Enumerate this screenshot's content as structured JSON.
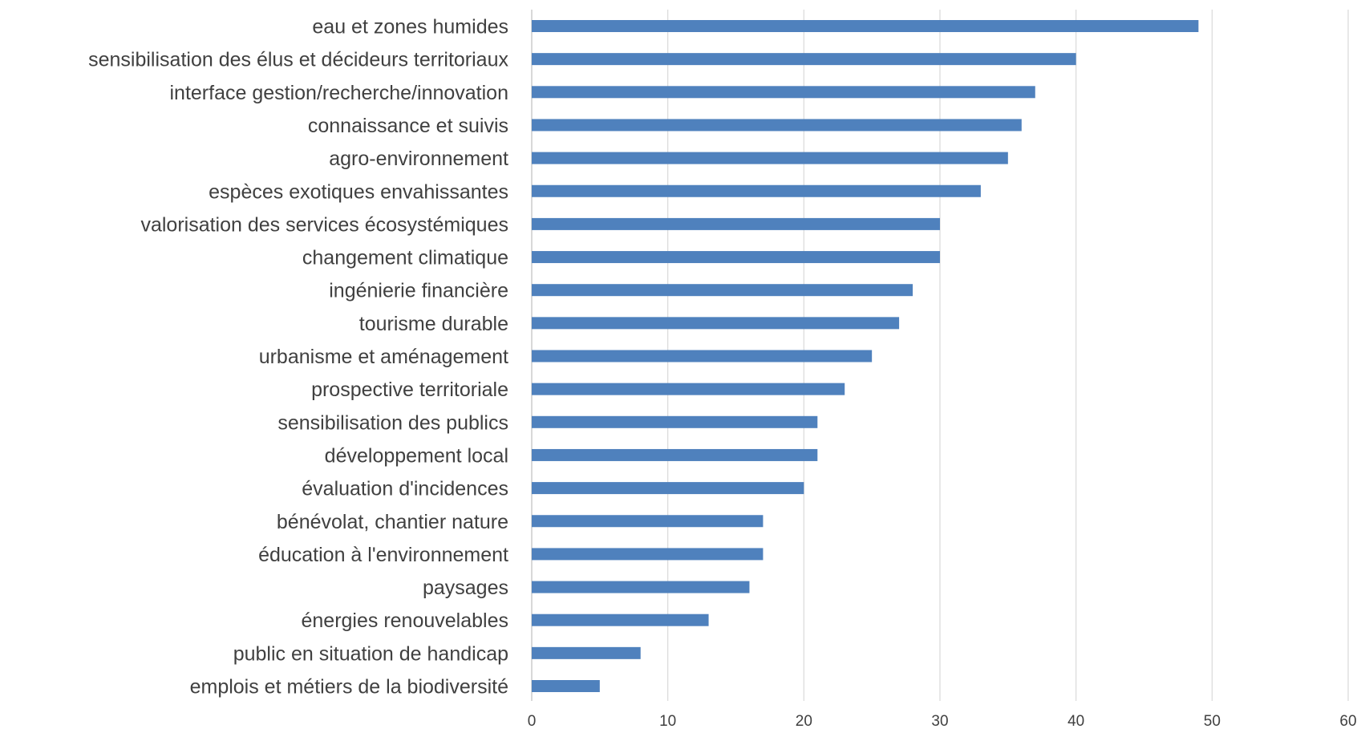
{
  "chart_data": {
    "type": "bar",
    "orientation": "horizontal",
    "title": "",
    "xlabel": "",
    "ylabel": "",
    "xlim": [
      0,
      60
    ],
    "ticks": [
      0,
      10,
      20,
      30,
      40,
      50,
      60
    ],
    "grid": true,
    "bar_color": "#4f81bd",
    "categories": [
      "eau et zones humides",
      "sensibilisation des élus et décideurs territoriaux",
      "interface gestion/recherche/innovation",
      "connaissance et suivis",
      "agro-environnement",
      "espèces exotiques envahissantes",
      "valorisation des services écosystémiques",
      "changement climatique",
      "ingénierie financière",
      "tourisme durable",
      "urbanisme et aménagement",
      "prospective territoriale",
      "sensibilisation des publics",
      "développement local",
      "évaluation d'incidences",
      "bénévolat, chantier nature",
      "éducation à l'environnement",
      "paysages",
      "énergies renouvelables",
      "public en situation de handicap",
      "emplois et métiers de la biodiversité"
    ],
    "values": [
      49,
      40,
      37,
      36,
      35,
      33,
      30,
      30,
      28,
      27,
      25,
      23,
      21,
      21,
      20,
      17,
      17,
      16,
      13,
      8,
      5
    ]
  }
}
